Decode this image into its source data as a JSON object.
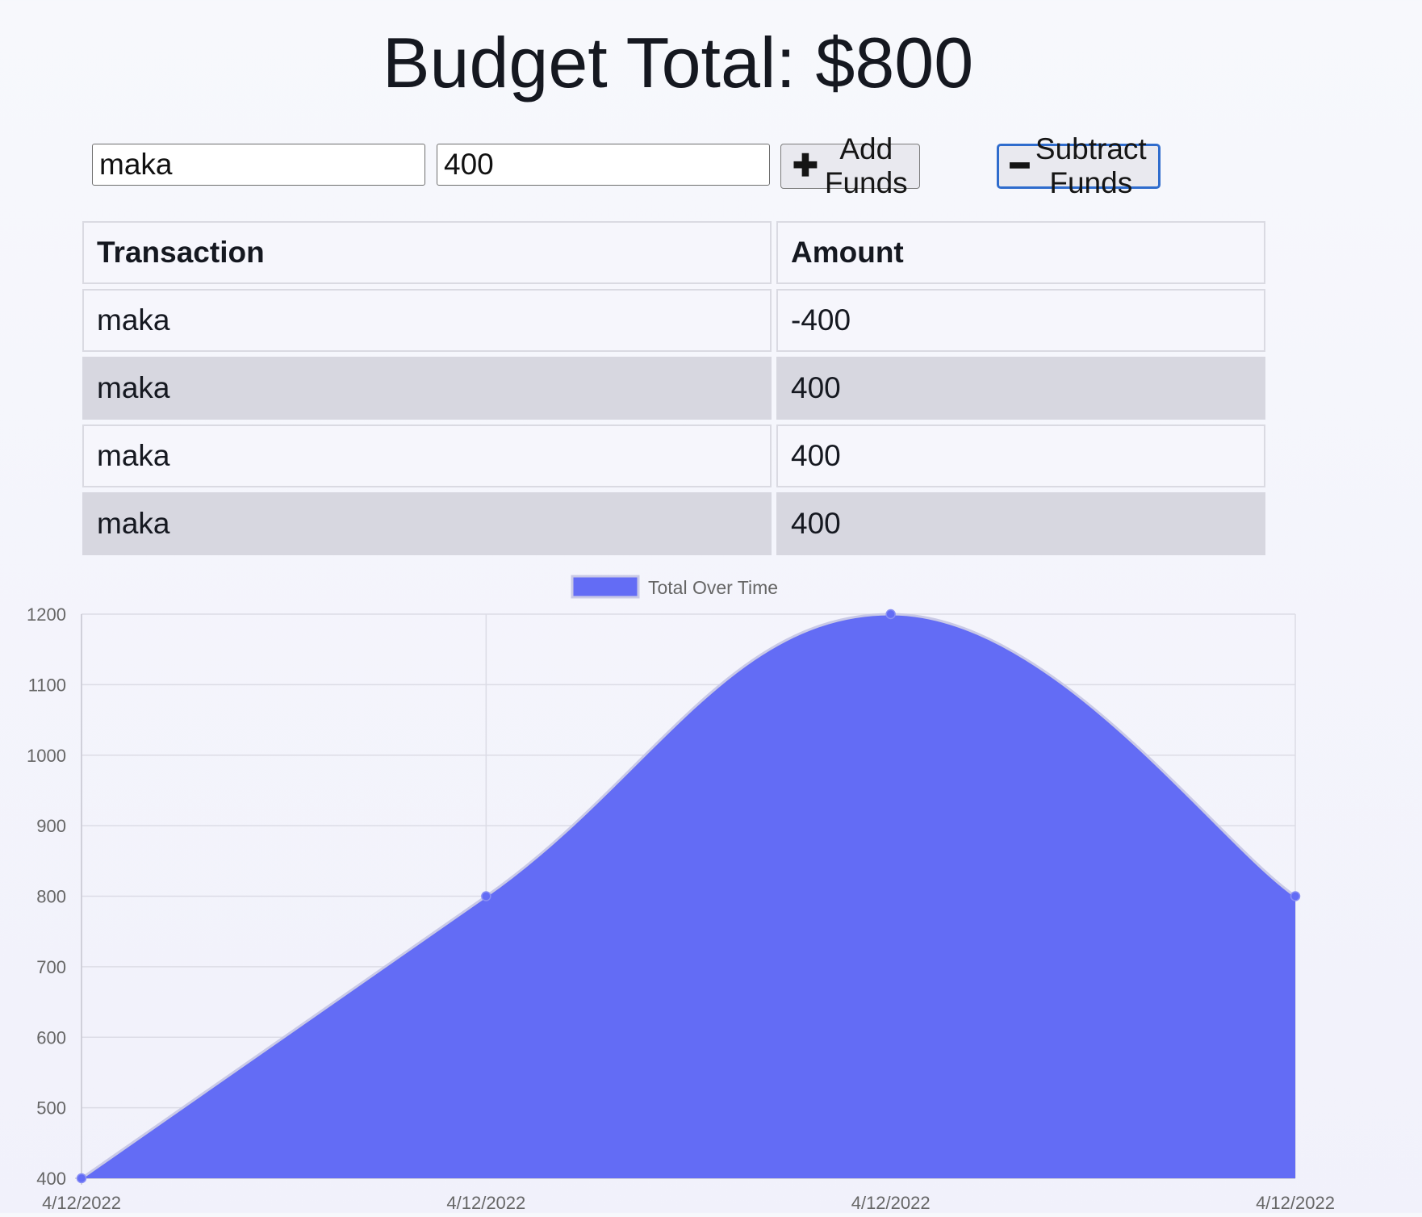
{
  "header": {
    "title": "Budget Total: $800"
  },
  "form": {
    "name_value": "maka",
    "amount_value": "400",
    "add_label": "Add Funds",
    "add_icon": "plus-icon",
    "subtract_label": "Subtract Funds",
    "subtract_icon": "minus-icon"
  },
  "table": {
    "headers": [
      "Transaction",
      "Amount"
    ],
    "rows": [
      {
        "name": "maka",
        "amount": "-400"
      },
      {
        "name": "maka",
        "amount": "400"
      },
      {
        "name": "maka",
        "amount": "400"
      },
      {
        "name": "maka",
        "amount": "400"
      }
    ]
  },
  "chart_data": {
    "type": "area",
    "title": "",
    "xlabel": "",
    "ylabel": "",
    "categories": [
      "4/12/2022",
      "4/12/2022",
      "4/12/2022",
      "4/12/2022"
    ],
    "series": [
      {
        "name": "Total Over Time",
        "values": [
          400,
          800,
          1200,
          800
        ],
        "color": "#636cf5"
      }
    ],
    "ylim": [
      400,
      1200
    ],
    "yticks": [
      400,
      500,
      600,
      700,
      800,
      900,
      1000,
      1100,
      1200
    ],
    "grid": true,
    "legend": "top-center",
    "smooth": true
  }
}
